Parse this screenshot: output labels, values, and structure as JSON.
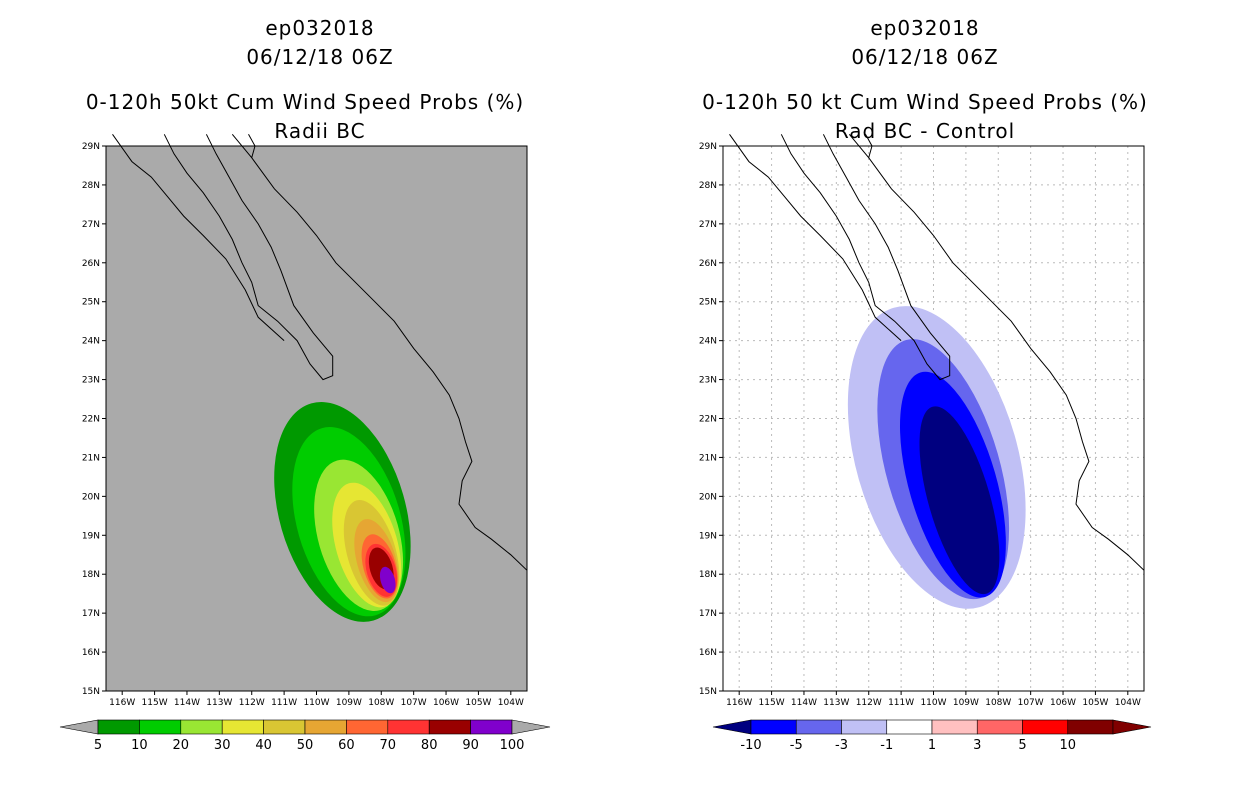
{
  "chart_data": [
    {
      "type": "filled-contour-map",
      "storm_id": "ep032018",
      "date": "06/12/18 06Z",
      "title": "0-120h 50kt Cum Wind Speed Probs (%)",
      "subtitle": "Radii BC",
      "lon_range": [
        -116.5,
        -103.5
      ],
      "lat_range": [
        15,
        29
      ],
      "x_ticks": [
        "116W",
        "115W",
        "114W",
        "113W",
        "112W",
        "111W",
        "110W",
        "109W",
        "108W",
        "107W",
        "106W",
        "105W",
        "104W"
      ],
      "y_ticks": [
        "15N",
        "16N",
        "17N",
        "18N",
        "19N",
        "20N",
        "21N",
        "22N",
        "23N",
        "24N",
        "25N",
        "26N",
        "27N",
        "28N",
        "29N"
      ],
      "background": "#aaaaaa",
      "contour_colors": [
        "#009900",
        "#00cc00",
        "#99e633",
        "#e6e633",
        "#d9c633",
        "#e6a633",
        "#ff6633",
        "#ff3333",
        "#990000",
        "#8000cc"
      ],
      "colorbar_levels": [
        "5",
        "10",
        "20",
        "30",
        "40",
        "50",
        "60",
        "70",
        "80",
        "90",
        "100"
      ],
      "contours": [
        {
          "level": 5,
          "center": [
            -109.2,
            19.6
          ],
          "radii": [
            1.95,
            2.9
          ],
          "color": "#009900"
        },
        {
          "level": 10,
          "center": [
            -109.0,
            19.35
          ],
          "radii": [
            1.6,
            2.5
          ],
          "color": "#00cc00"
        },
        {
          "level": 20,
          "center": [
            -108.7,
            19.0
          ],
          "radii": [
            1.25,
            2.0
          ],
          "color": "#99e633"
        },
        {
          "level": 30,
          "center": [
            -108.45,
            18.75
          ],
          "radii": [
            0.95,
            1.65
          ],
          "color": "#e6e633"
        },
        {
          "level": 40,
          "center": [
            -108.3,
            18.55
          ],
          "radii": [
            0.75,
            1.4
          ],
          "color": "#d9c633"
        },
        {
          "level": 50,
          "center": [
            -108.15,
            18.35
          ],
          "radii": [
            0.6,
            1.1
          ],
          "color": "#e6a633"
        },
        {
          "level": 60,
          "center": [
            -108.05,
            18.2
          ],
          "radii": [
            0.5,
            0.85
          ],
          "color": "#ff6633"
        },
        {
          "level": 70,
          "center": [
            -108.0,
            18.1
          ],
          "radii": [
            0.45,
            0.7
          ],
          "color": "#ff3333"
        },
        {
          "level": 80,
          "center": [
            -108.0,
            18.15
          ],
          "radii": [
            0.35,
            0.55
          ],
          "color": "#990000"
        },
        {
          "level": 90,
          "center": [
            -107.8,
            17.85
          ],
          "radii": [
            0.22,
            0.35
          ],
          "color": "#8000cc"
        }
      ]
    },
    {
      "type": "filled-contour-map",
      "storm_id": "ep032018",
      "date": "06/12/18 06Z",
      "title": "0-120h 50 kt Cum Wind Speed Probs (%)",
      "subtitle": "Rad BC - Control",
      "lon_range": [
        -116.5,
        -103.5
      ],
      "lat_range": [
        15,
        29
      ],
      "x_ticks": [
        "116W",
        "115W",
        "114W",
        "113W",
        "112W",
        "111W",
        "110W",
        "109W",
        "108W",
        "107W",
        "106W",
        "105W",
        "104W"
      ],
      "y_ticks": [
        "15N",
        "16N",
        "17N",
        "18N",
        "19N",
        "20N",
        "21N",
        "22N",
        "23N",
        "24N",
        "25N",
        "26N",
        "27N",
        "28N",
        "29N"
      ],
      "background": "#ffffff",
      "grid": true,
      "contour_colors": [
        "#000080",
        "#0000ff",
        "#6666ee",
        "#c0c0f5",
        "#ffffff",
        "#ffc0c0",
        "#ff6666",
        "#ff0000",
        "#800000"
      ],
      "colorbar_levels": [
        "-10",
        "-5",
        "-3",
        "-1",
        "1",
        "3",
        "5",
        "10"
      ],
      "contours": [
        {
          "level": -1,
          "center": [
            -109.9,
            21.0
          ],
          "radii": [
            2.5,
            4.0
          ],
          "color": "#c0c0f5"
        },
        {
          "level": -3,
          "center": [
            -109.7,
            20.7
          ],
          "radii": [
            1.75,
            3.45
          ],
          "color": "#6666ee"
        },
        {
          "level": -5,
          "center": [
            -109.4,
            20.3
          ],
          "radii": [
            1.35,
            3.0
          ],
          "color": "#0000ff"
        },
        {
          "level": -10,
          "center": [
            -109.2,
            19.9
          ],
          "radii": [
            0.95,
            2.5
          ],
          "color": "#000080"
        }
      ]
    }
  ]
}
